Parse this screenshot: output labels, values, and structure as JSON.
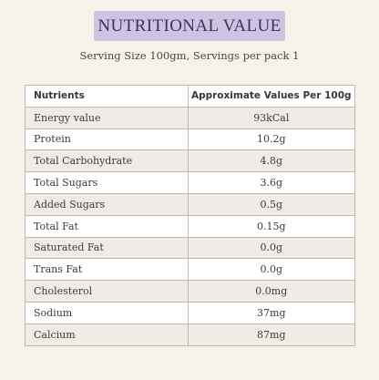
{
  "header": {
    "title": "NUTRITIONAL VALUE",
    "serving": "Serving Size 100gm, Servings per pack 1"
  },
  "table": {
    "columns": [
      "Nutrients",
      "Approximate Values Per 100g"
    ],
    "rows": [
      {
        "nutrient": "Energy value",
        "value": "93kCal"
      },
      {
        "nutrient": "Protein",
        "value": "10.2g"
      },
      {
        "nutrient": "Total Carbohydrate",
        "value": "4.8g"
      },
      {
        "nutrient": "Total Sugars",
        "value": "3.6g"
      },
      {
        "nutrient": "Added Sugars",
        "value": "0.5g"
      },
      {
        "nutrient": "Total Fat",
        "value": "0.15g"
      },
      {
        "nutrient": "Saturated Fat",
        "value": "0.0g"
      },
      {
        "nutrient": "Trans Fat",
        "value": "0.0g"
      },
      {
        "nutrient": "Cholesterol",
        "value": "0.0mg"
      },
      {
        "nutrient": "Sodium",
        "value": "37mg"
      },
      {
        "nutrient": "Calcium",
        "value": "87mg"
      }
    ]
  },
  "colors": {
    "background": "#f6f1e9",
    "title_band": "#cdc4e3",
    "row_alt": "#efece6"
  }
}
